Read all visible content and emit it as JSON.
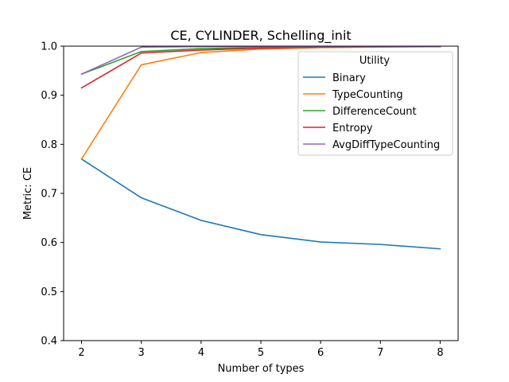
{
  "chart_data": {
    "type": "line",
    "title": "CE, CYLINDER, Schelling_init",
    "xlabel": "Number of types",
    "ylabel": "Metric: CE",
    "x": [
      2,
      3,
      4,
      5,
      6,
      7,
      8
    ],
    "xlim": [
      1.7,
      8.3
    ],
    "ylim": [
      0.4,
      1.0
    ],
    "xticks": [
      "2",
      "3",
      "4",
      "5",
      "6",
      "7",
      "8"
    ],
    "yticks": [
      "0.4",
      "0.5",
      "0.6",
      "0.7",
      "0.8",
      "0.9",
      "1.0"
    ],
    "legend_title": "Utility",
    "legend_position": "upper-right",
    "grid": false,
    "series": [
      {
        "name": "Binary",
        "color": "#1f77b4",
        "values": [
          0.77,
          0.691,
          0.645,
          0.616,
          0.601,
          0.596,
          0.587
        ]
      },
      {
        "name": "TypeCounting",
        "color": "#ff7f0e",
        "values": [
          0.77,
          0.962,
          0.987,
          0.994,
          0.997,
          0.998,
          0.999
        ]
      },
      {
        "name": "DifferenceCount",
        "color": "#2ca02c",
        "values": [
          0.943,
          0.989,
          0.995,
          0.997,
          0.998,
          0.999,
          0.999
        ]
      },
      {
        "name": "Entropy",
        "color": "#d62728",
        "values": [
          0.915,
          0.986,
          0.992,
          0.996,
          0.998,
          0.999,
          0.999
        ]
      },
      {
        "name": "AvgDiffTypeCounting",
        "color": "#9467bd",
        "values": [
          0.943,
          0.998,
          0.999,
          0.999,
          0.999,
          0.999,
          0.999
        ]
      }
    ]
  }
}
